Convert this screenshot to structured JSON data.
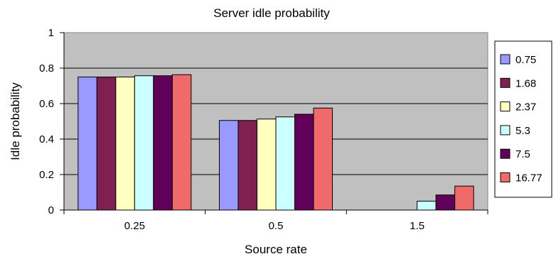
{
  "chart_data": {
    "type": "bar",
    "title": "Server idle probability",
    "xlabel": "Source rate",
    "ylabel": "Idle probability",
    "categories": [
      "0.25",
      "0.5",
      "1.5"
    ],
    "ylim": [
      0,
      1
    ],
    "yticks": [
      0,
      0.2,
      0.4,
      0.6,
      0.8,
      1
    ],
    "ytick_labels": [
      "0",
      "0.2",
      "0.4",
      "0.6",
      "0.8",
      "1"
    ],
    "grid": true,
    "plot_background": "#c0c0c0",
    "legend_position": "right",
    "series": [
      {
        "name": "0.75",
        "color": "#9999ff",
        "values": [
          0.75,
          0.505,
          0.0
        ]
      },
      {
        "name": "1.68",
        "color": "#7f2050",
        "values": [
          0.75,
          0.505,
          0.0
        ]
      },
      {
        "name": "2.37",
        "color": "#ffffc0",
        "values": [
          0.75,
          0.513,
          0.0
        ]
      },
      {
        "name": "5.3",
        "color": "#ccffff",
        "values": [
          0.757,
          0.525,
          0.05
        ]
      },
      {
        "name": "7.5",
        "color": "#600058",
        "values": [
          0.757,
          0.54,
          0.085
        ]
      },
      {
        "name": "16.77",
        "color": "#ef6b6b",
        "values": [
          0.763,
          0.575,
          0.135
        ]
      }
    ]
  }
}
